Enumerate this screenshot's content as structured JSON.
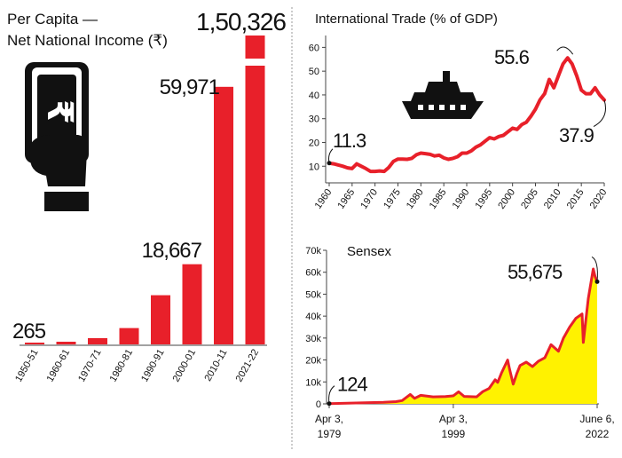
{
  "colors": {
    "bar": "#e8202a",
    "line": "#e8202a",
    "area": "#fff200",
    "text": "#111111",
    "axis": "#444444",
    "divider": "#999999"
  },
  "icons": {
    "money": "hand-holding-rupee-note-icon",
    "ship": "cargo-ship-icon"
  },
  "chart_data": [
    {
      "type": "bar",
      "title_lines": [
        "Per Capita —",
        "Net National Income (₹)"
      ],
      "categories": [
        "1950-51",
        "1960-61",
        "1970-71",
        "1980-81",
        "1990-91",
        "2000-01",
        "2010-11",
        "2021-22"
      ],
      "values": [
        265,
        620,
        1450,
        3800,
        11450,
        18667,
        59971,
        150326
      ],
      "data_labels": [
        "265",
        "",
        "",
        "",
        "",
        "18,667",
        "59,971",
        "1,50,326"
      ],
      "axis_break": {
        "top_bar_index": 7
      },
      "grid": false,
      "legend": "none"
    },
    {
      "type": "line",
      "title": "International Trade (% of GDP)",
      "xlabel": "",
      "ylabel": "",
      "x_ticks": [
        "1960",
        "1965",
        "1970",
        "1975",
        "1980",
        "1985",
        "1990",
        "1995",
        "2000",
        "2005",
        "2010",
        "2015",
        "2020"
      ],
      "y_ticks": [
        "10",
        "20",
        "30",
        "40",
        "50",
        "60"
      ],
      "xlim": [
        1960,
        2020
      ],
      "ylim": [
        3,
        65
      ],
      "x": [
        1960,
        1961,
        1962,
        1963,
        1964,
        1965,
        1966,
        1967,
        1968,
        1969,
        1970,
        1971,
        1972,
        1973,
        1974,
        1975,
        1976,
        1977,
        1978,
        1979,
        1980,
        1981,
        1982,
        1983,
        1984,
        1985,
        1986,
        1987,
        1988,
        1989,
        1990,
        1991,
        1992,
        1993,
        1994,
        1995,
        1996,
        1997,
        1998,
        1999,
        2000,
        2001,
        2002,
        2003,
        2004,
        2005,
        2006,
        2007,
        2008,
        2009,
        2010,
        2011,
        2012,
        2013,
        2014,
        2015,
        2016,
        2017,
        2018,
        2019,
        2020
      ],
      "values": [
        11.3,
        11.0,
        10.5,
        10.0,
        9.3,
        9.0,
        11.0,
        10.0,
        9.0,
        7.8,
        7.8,
        8.0,
        7.8,
        9.5,
        12.0,
        13.0,
        13.0,
        12.9,
        13.3,
        14.8,
        15.5,
        15.3,
        15.0,
        14.3,
        14.6,
        13.5,
        12.9,
        13.3,
        14.0,
        15.5,
        15.5,
        16.5,
        18.0,
        19.0,
        20.5,
        22.0,
        21.5,
        22.5,
        23.0,
        24.5,
        26.0,
        25.5,
        27.5,
        28.5,
        31.0,
        34.0,
        38.0,
        40.5,
        46.5,
        43.0,
        48.0,
        53.0,
        55.6,
        53.0,
        48.0,
        42.0,
        40.5,
        40.5,
        43.0,
        40.0,
        37.9
      ],
      "annotations": [
        {
          "x": 1960,
          "y": 11.3,
          "label": "11.3"
        },
        {
          "x": 2012,
          "y": 55.6,
          "label": "55.6"
        },
        {
          "x": 2020,
          "y": 37.9,
          "label": "37.9"
        }
      ],
      "grid": false,
      "legend": "none"
    },
    {
      "type": "area",
      "title": "Sensex",
      "x_ticks": [
        "Apr 3, 1979",
        "Apr 3, 1999",
        "June 6, 2022"
      ],
      "y_ticks": [
        "0",
        "10k",
        "20k",
        "30k",
        "40k",
        "50k",
        "60k",
        "70k"
      ],
      "xlim": [
        1979.25,
        2022.43
      ],
      "ylim": [
        0,
        70000
      ],
      "x": [
        1979.25,
        1985,
        1988,
        1990,
        1991,
        1992.3,
        1993,
        1994,
        1996,
        1998,
        1999.25,
        2000.1,
        2001,
        2003,
        2004,
        2005,
        2006,
        2006.4,
        2007,
        2008.0,
        2008.3,
        2008.9,
        2009.5,
        2010,
        2011,
        2012,
        2013,
        2014,
        2015,
        2016.2,
        2017,
        2018,
        2019,
        2020.0,
        2020.2,
        2020.6,
        2021,
        2021.8,
        2022.1,
        2022.43
      ],
      "values": [
        124,
        500,
        700,
        1000,
        1500,
        4300,
        2500,
        3900,
        3200,
        3300,
        3700,
        5500,
        3400,
        3200,
        5600,
        7000,
        11000,
        9800,
        14000,
        20000,
        16000,
        9000,
        14000,
        17500,
        19000,
        17000,
        19500,
        21000,
        27000,
        24000,
        30000,
        35000,
        39000,
        41000,
        28000,
        38000,
        48000,
        61500,
        58000,
        55675
      ],
      "annotations": [
        {
          "x": 1979.25,
          "y": 124,
          "label": "124"
        },
        {
          "x": 2022.43,
          "y": 55675,
          "label": "55,675"
        }
      ],
      "grid": false,
      "legend": "none"
    }
  ]
}
